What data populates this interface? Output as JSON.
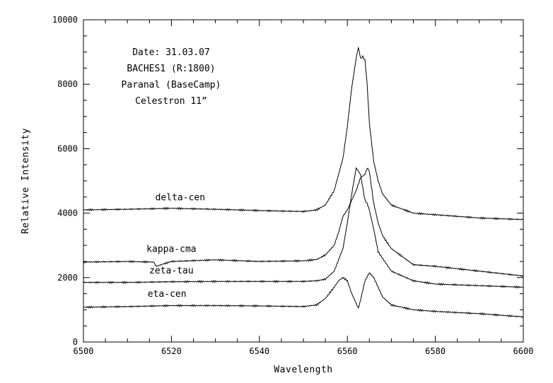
{
  "chart_data": {
    "type": "line",
    "xlabel": "Wavelength",
    "ylabel": "Relative Intensity",
    "xlim": [
      6500,
      6600
    ],
    "ylim": [
      0,
      10000
    ],
    "x_ticks": [
      6500,
      6520,
      6540,
      6560,
      6580,
      6600
    ],
    "y_ticks": [
      0,
      2000,
      4000,
      6000,
      8000,
      10000
    ],
    "annotations": [
      "Date: 31.03.07",
      "BACHES1 (R:1800)",
      "Paranal (BaseCamp)",
      "Celestron 11”"
    ],
    "series": [
      {
        "name": "delta-cen",
        "x": [
          6500,
          6510,
          6520,
          6530,
          6540,
          6550,
          6553,
          6555,
          6557,
          6559,
          6560,
          6561,
          6562,
          6562.5,
          6563,
          6563.5,
          6564,
          6564.5,
          6565,
          6566,
          6567,
          6568,
          6570,
          6575,
          6580,
          6590,
          6600
        ],
        "values": [
          4100,
          4120,
          4150,
          4120,
          4080,
          4050,
          4100,
          4250,
          4700,
          5700,
          6700,
          7900,
          8800,
          9150,
          8800,
          8850,
          8750,
          8000,
          6800,
          5600,
          5000,
          4600,
          4250,
          4000,
          3950,
          3850,
          3800
        ]
      },
      {
        "name": "kappa-cma",
        "x": [
          6500,
          6510,
          6516,
          6516.5,
          6520,
          6530,
          6540,
          6550,
          6553,
          6555,
          6557,
          6558,
          6559,
          6560,
          6561,
          6562,
          6563,
          6564,
          6564.5,
          6565,
          6566,
          6567,
          6568,
          6570,
          6573,
          6575,
          6580,
          6590,
          6600
        ],
        "values": [
          2480,
          2500,
          2480,
          2350,
          2500,
          2550,
          2500,
          2520,
          2560,
          2700,
          3000,
          3400,
          3900,
          4100,
          4400,
          4700,
          5100,
          5200,
          5400,
          5300,
          4300,
          3700,
          3300,
          2900,
          2600,
          2400,
          2350,
          2200,
          2050
        ]
      },
      {
        "name": "zeta-tau",
        "x": [
          6500,
          6510,
          6520,
          6530,
          6540,
          6550,
          6553,
          6555,
          6557,
          6559,
          6560,
          6561,
          6562,
          6563,
          6564,
          6564.5,
          6565,
          6566,
          6567,
          6570,
          6575,
          6580,
          6590,
          6600
        ],
        "values": [
          1850,
          1850,
          1870,
          1880,
          1880,
          1880,
          1900,
          1950,
          2200,
          2900,
          3700,
          4600,
          5400,
          5200,
          4400,
          4300,
          4100,
          3500,
          2800,
          2200,
          1900,
          1800,
          1750,
          1700
        ]
      },
      {
        "name": "eta-cen",
        "x": [
          6500,
          6510,
          6520,
          6530,
          6540,
          6550,
          6553,
          6555,
          6557,
          6558,
          6559,
          6560,
          6561,
          6562,
          6562.5,
          6563,
          6564,
          6565,
          6566,
          6567,
          6568,
          6570,
          6575,
          6580,
          6590,
          6600
        ],
        "values": [
          1080,
          1100,
          1130,
          1130,
          1120,
          1100,
          1150,
          1350,
          1700,
          1900,
          2000,
          1900,
          1500,
          1200,
          1050,
          1300,
          1900,
          2150,
          2000,
          1700,
          1400,
          1150,
          1000,
          950,
          880,
          780
        ]
      }
    ]
  }
}
